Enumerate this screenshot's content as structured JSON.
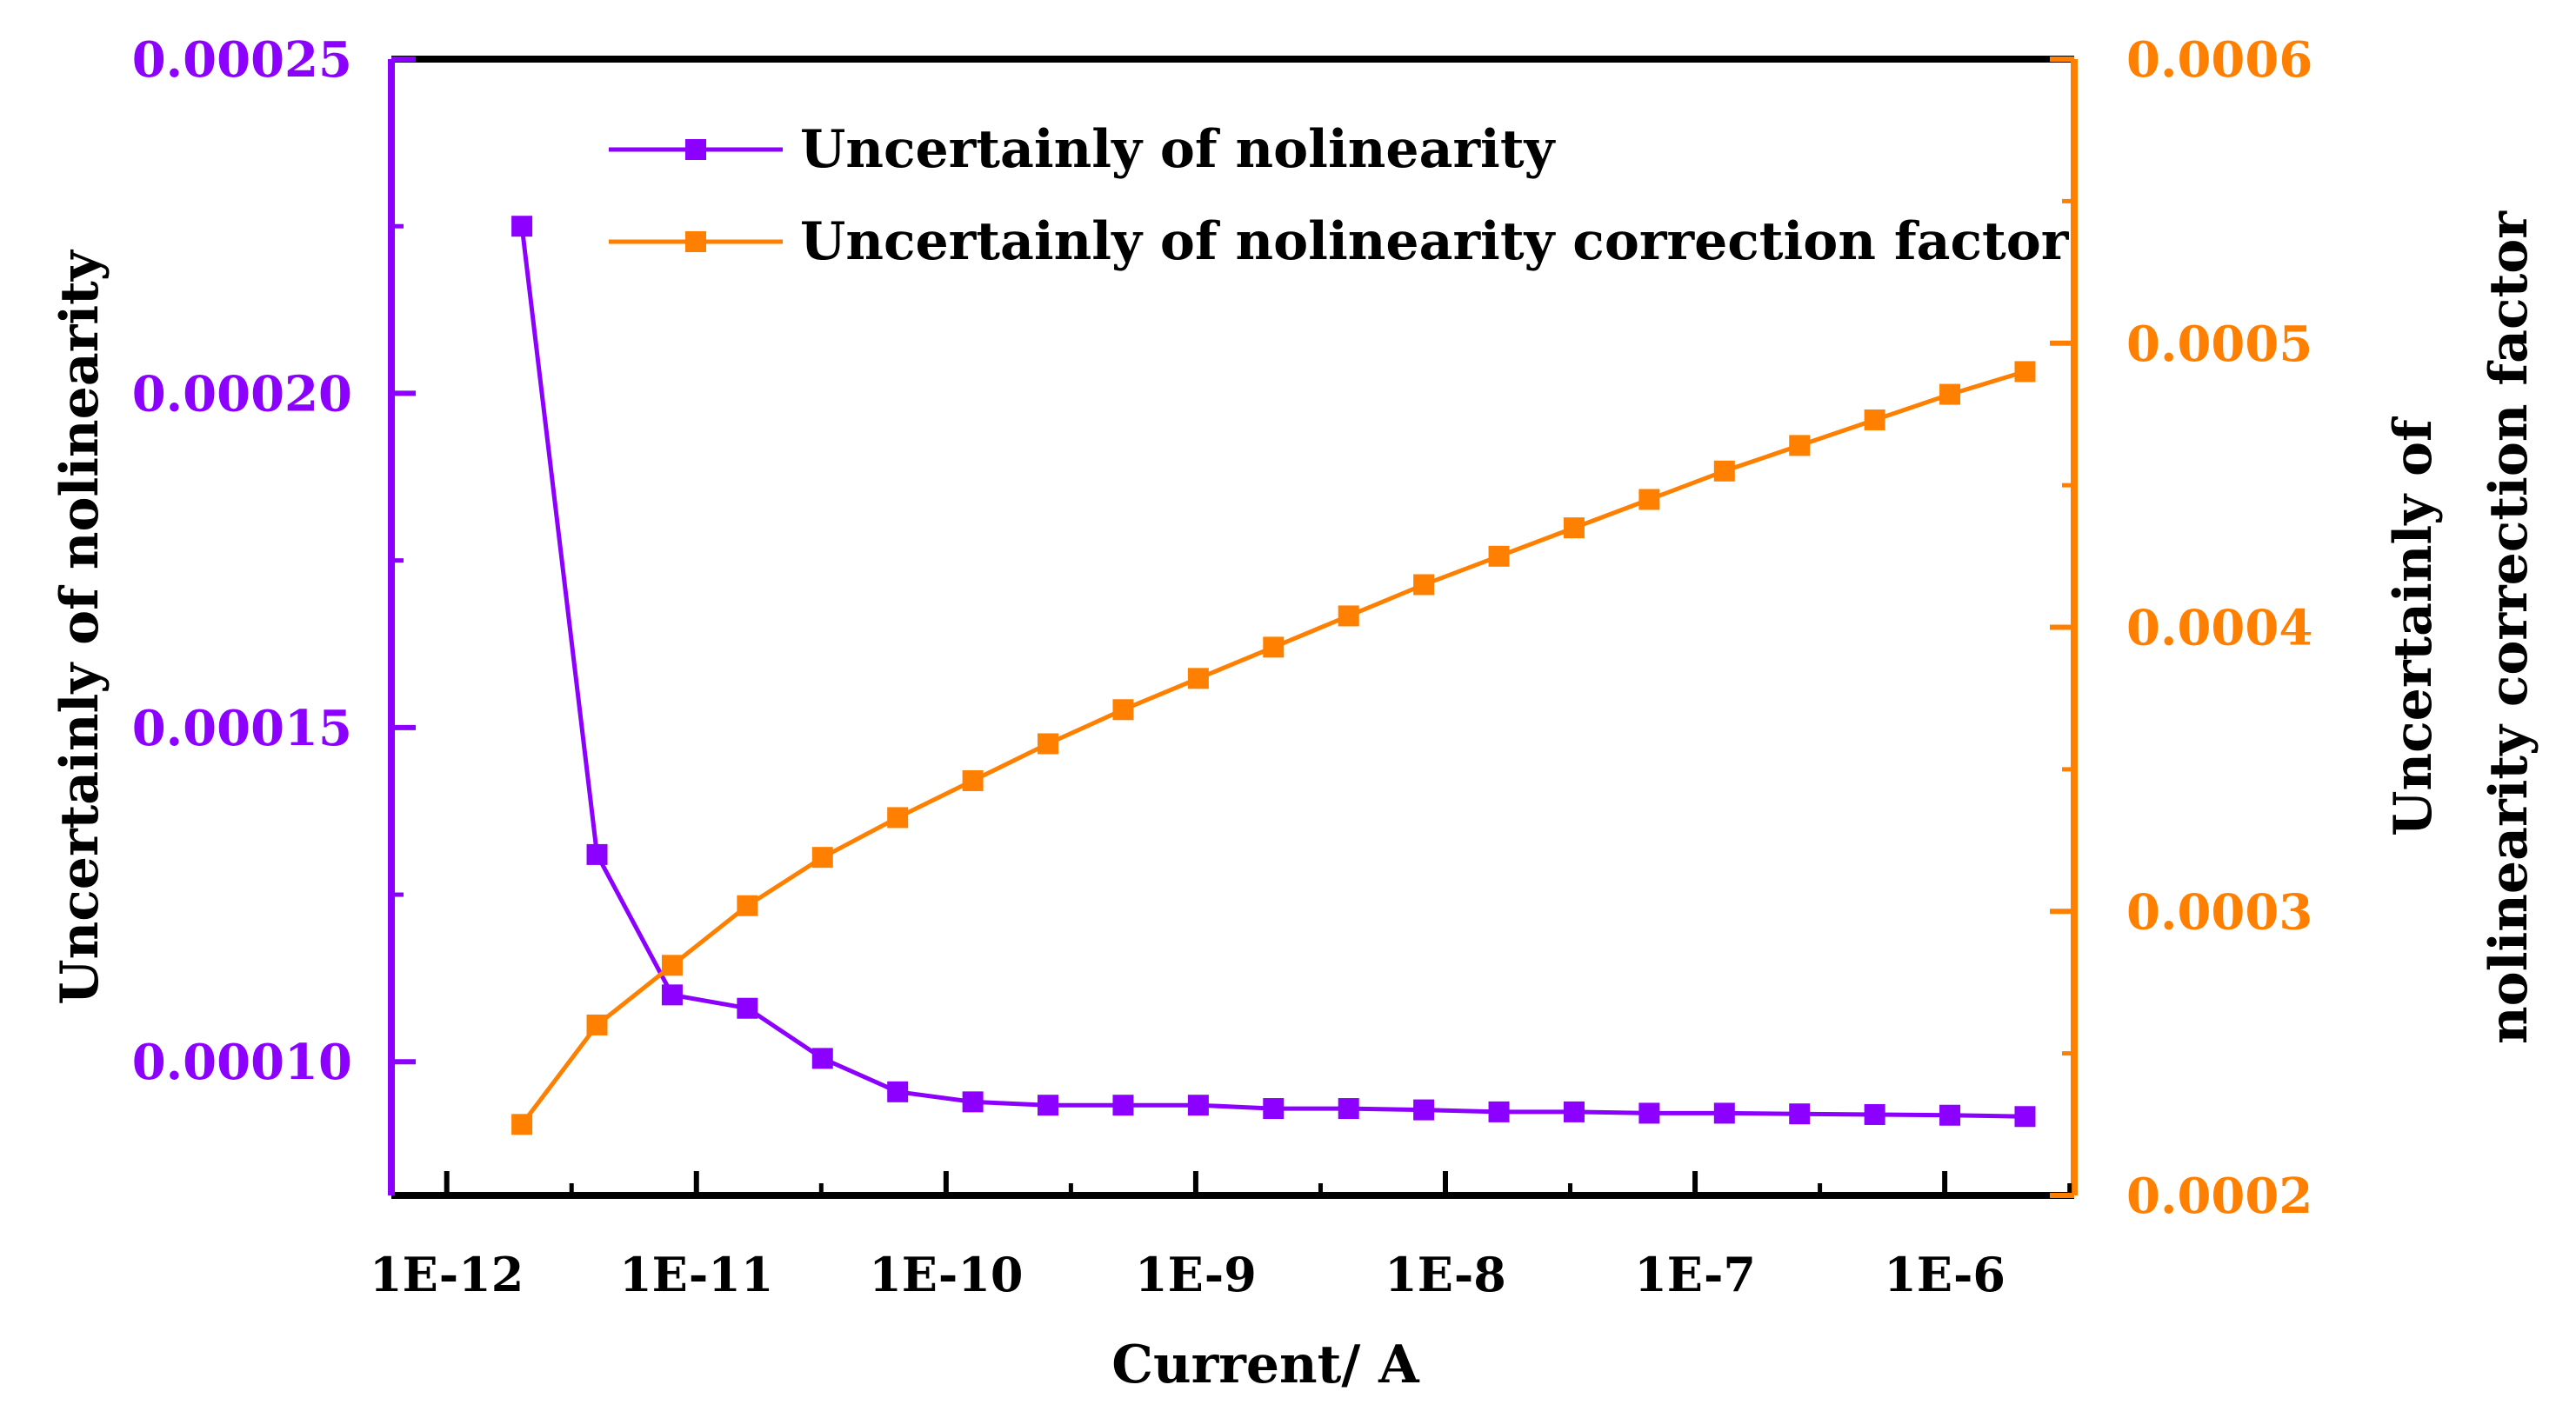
{
  "chart_data": {
    "type": "line",
    "title": "",
    "xlabel": "Current/ A",
    "ylabel_left": "Uncertainly of nolinearity",
    "ylabel_right_lines": [
      "Uncertainly of",
      "nolinearity correction factor"
    ],
    "x_scale": "log",
    "xlim": [
      6e-13,
      3.3e-06
    ],
    "x_tick_labels": [
      "1E-12",
      "1E-11",
      "1E-10",
      "1E-9",
      "1E-8",
      "1E-7",
      "1E-6"
    ],
    "x_tick_values": [
      1e-12,
      1e-11,
      1e-10,
      1e-09,
      1e-08,
      1e-07,
      1e-06
    ],
    "ylim_left": [
      8e-05,
      0.00025
    ],
    "y_left_tick_labels": [
      "0.00010",
      "0.00015",
      "0.00020",
      "0.00025"
    ],
    "y_left_tick_values": [
      0.0001,
      0.00015,
      0.0002,
      0.00025
    ],
    "ylim_right": [
      0.0002,
      0.0006
    ],
    "y_right_tick_labels": [
      "0.0002",
      "0.0003",
      "0.0004",
      "0.0005",
      "0.0006"
    ],
    "y_right_tick_values": [
      0.0002,
      0.0003,
      0.0004,
      0.0005,
      0.0006
    ],
    "legend_position": "top-left",
    "x": [
      2e-12,
      4e-12,
      8e-12,
      1.6e-11,
      3.2e-11,
      6.4e-11,
      1.28e-10,
      2.56e-10,
      5.12e-10,
      1.024e-09,
      2.048e-09,
      4.096e-09,
      8.192e-09,
      1.6384e-08,
      3.2768e-08,
      6.5536e-08,
      1.31072e-07,
      2.62144e-07,
      5.24288e-07,
      1.048576e-06,
      2.097152e-06
    ],
    "series": [
      {
        "name": "Uncertainly of nolinearity",
        "axis": "left",
        "color": "#8b00ff",
        "values": [
          0.000225,
          0.000131,
          0.00011,
          0.000108,
          0.0001005,
          9.55e-05,
          9.4e-05,
          9.35e-05,
          9.35e-05,
          9.35e-05,
          9.3e-05,
          9.3e-05,
          9.28e-05,
          9.25e-05,
          9.25e-05,
          9.23e-05,
          9.23e-05,
          9.22e-05,
          9.21e-05,
          9.2e-05,
          9.18e-05
        ]
      },
      {
        "name": "Uncertainly of nolinearity correction factor",
        "axis": "right",
        "color": "#ff8000",
        "values": [
          0.000225,
          0.00026,
          0.000281,
          0.000302,
          0.000319,
          0.000333,
          0.000346,
          0.000359,
          0.000371,
          0.000382,
          0.000393,
          0.000404,
          0.000415,
          0.000425,
          0.000435,
          0.000445,
          0.000455,
          0.000464,
          0.000473,
          0.000482,
          0.00049
        ]
      }
    ]
  }
}
